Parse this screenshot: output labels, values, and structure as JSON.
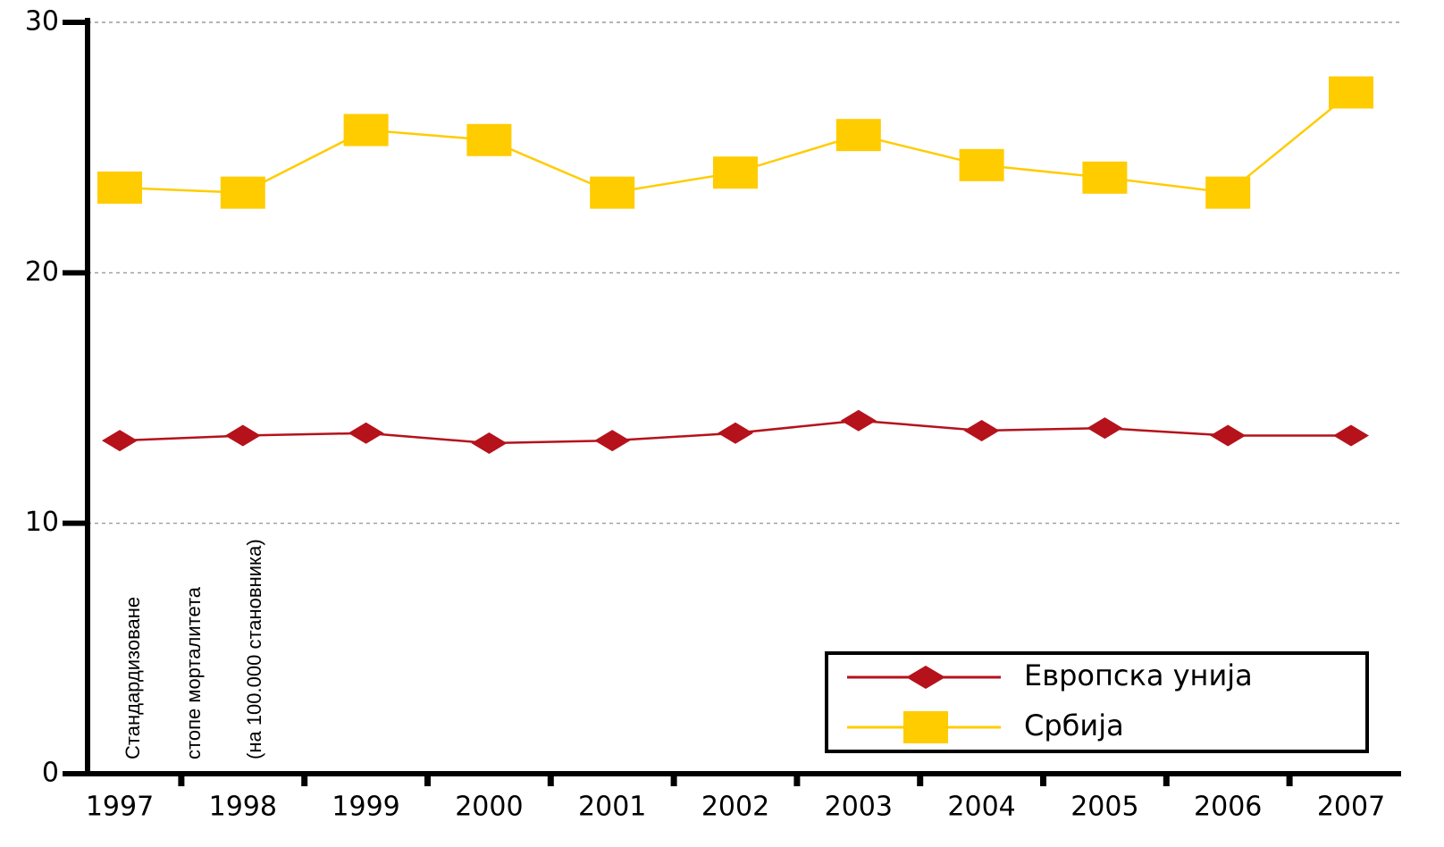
{
  "chart_data": {
    "type": "line",
    "categories": [
      "1997",
      "1998",
      "1999",
      "2000",
      "2001",
      "2002",
      "2003",
      "2004",
      "2005",
      "2006",
      "2007"
    ],
    "series": [
      {
        "name": "Европска унија",
        "color": "#b5121b",
        "marker": "diamond",
        "values": [
          13.3,
          13.5,
          13.6,
          13.2,
          13.3,
          13.6,
          14.1,
          13.7,
          13.8,
          13.5,
          13.5
        ]
      },
      {
        "name": "Србија",
        "color": "#ffcc00",
        "marker": "square",
        "values": [
          23.4,
          23.2,
          25.7,
          25.3,
          23.2,
          24.0,
          25.5,
          24.3,
          23.8,
          23.2,
          27.2
        ]
      }
    ],
    "y_label": [
      "Стандардизоване",
      "стопе морталитета",
      "(на 100.000 становника)"
    ],
    "ylim": [
      0,
      30
    ],
    "yticks": [
      0,
      10,
      20,
      30
    ],
    "grid": true,
    "legend": "lower right"
  }
}
